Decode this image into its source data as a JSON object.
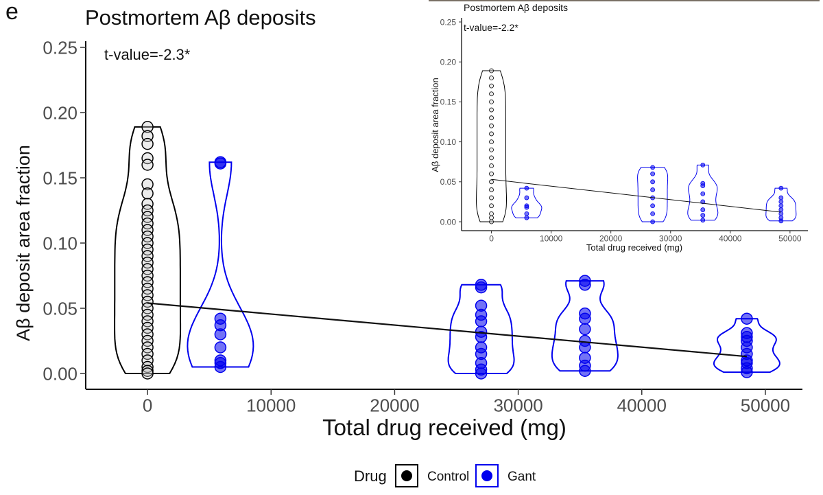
{
  "figure": {
    "panel_letter": "e",
    "legend": {
      "title": "Drug",
      "items": [
        {
          "label": "Control",
          "color": "#000000"
        },
        {
          "label": "Gant",
          "color": "#0000ee"
        }
      ]
    }
  },
  "chart_data": [
    {
      "type": "scatter",
      "subtype": "violin + points + regression line",
      "title": "Postmortem Aβ deposits",
      "annotation": "t-value=-2.3*",
      "xlabel": "Total drug received (mg)",
      "ylabel": "Aβ deposit area fraction",
      "xlim": [
        -5000,
        53000
      ],
      "ylim": [
        0,
        0.25
      ],
      "xticks": [
        0,
        10000,
        20000,
        30000,
        40000,
        50000
      ],
      "xtick_labels": [
        "0",
        "10000",
        "20000",
        "30000",
        "40000",
        "50000"
      ],
      "yticks": [
        0,
        0.05,
        0.1,
        0.15,
        0.2,
        0.25
      ],
      "ytick_labels": [
        "0.00",
        "0.05",
        "0.10",
        "0.15",
        "0.20",
        "0.25"
      ],
      "grid": false,
      "regression_line": {
        "x": [
          0,
          48500
        ],
        "y": [
          0.054,
          0.013
        ]
      },
      "groups": [
        {
          "series": "Control",
          "x": 0,
          "color": "#000000",
          "values": [
            0.189,
            0.182,
            0.176,
            0.165,
            0.16,
            0.145,
            0.138,
            0.13,
            0.125,
            0.12,
            0.115,
            0.11,
            0.105,
            0.1,
            0.095,
            0.09,
            0.085,
            0.08,
            0.075,
            0.07,
            0.065,
            0.06,
            0.055,
            0.05,
            0.045,
            0.04,
            0.035,
            0.03,
            0.025,
            0.02,
            0.015,
            0.01,
            0.005,
            0.002,
            0.0
          ]
        },
        {
          "series": "Gant",
          "x": 5900,
          "color": "#0000ee",
          "values": [
            0.162,
            0.161,
            0.042,
            0.037,
            0.03,
            0.02,
            0.01,
            0.008,
            0.005
          ]
        },
        {
          "series": "Gant",
          "x": 27000,
          "color": "#0000ee",
          "values": [
            0.068,
            0.066,
            0.052,
            0.045,
            0.04,
            0.032,
            0.028,
            0.02,
            0.015,
            0.008,
            0.003,
            0.0
          ]
        },
        {
          "series": "Gant",
          "x": 35400,
          "color": "#0000ee",
          "values": [
            0.071,
            0.068,
            0.046,
            0.042,
            0.034,
            0.025,
            0.02,
            0.012,
            0.006,
            0.002
          ]
        },
        {
          "series": "Gant",
          "x": 48500,
          "color": "#0000ee",
          "values": [
            0.042,
            0.031,
            0.028,
            0.025,
            0.02,
            0.015,
            0.01,
            0.008,
            0.004,
            0.001
          ]
        }
      ]
    },
    {
      "type": "scatter",
      "subtype": "violin + points + regression line (inset)",
      "title": "Postmortem Aβ deposits",
      "annotation": "t-value=-2.2*",
      "xlabel": "Total drug received (mg)",
      "ylabel": "Aβ deposit area fraction",
      "xlim": [
        -5000,
        53000
      ],
      "ylim": [
        0,
        0.25
      ],
      "xticks": [
        0,
        10000,
        20000,
        30000,
        40000,
        50000
      ],
      "xtick_labels": [
        "0",
        "10000",
        "20000",
        "30000",
        "40000",
        "50000"
      ],
      "yticks": [
        0,
        0.05,
        0.1,
        0.15,
        0.2,
        0.25
      ],
      "ytick_labels": [
        "0.00",
        "0.05",
        "0.10",
        "0.15",
        "0.20",
        "0.25"
      ],
      "grid": false,
      "regression_line": {
        "x": [
          0,
          48500
        ],
        "y": [
          0.053,
          0.012
        ]
      },
      "groups": [
        {
          "series": "Control",
          "x": 0,
          "color": "#000000",
          "values": [
            0.189,
            0.18,
            0.17,
            0.16,
            0.15,
            0.14,
            0.13,
            0.12,
            0.11,
            0.1,
            0.09,
            0.08,
            0.07,
            0.06,
            0.05,
            0.04,
            0.03,
            0.02,
            0.01,
            0.005,
            0.0
          ]
        },
        {
          "series": "Gant",
          "x": 5900,
          "color": "#0000ee",
          "values": [
            0.042,
            0.03,
            0.02,
            0.018,
            0.01,
            0.005
          ]
        },
        {
          "series": "Gant",
          "x": 27000,
          "color": "#0000ee",
          "values": [
            0.068,
            0.06,
            0.05,
            0.04,
            0.03,
            0.02,
            0.01,
            0.0
          ]
        },
        {
          "series": "Gant",
          "x": 35400,
          "color": "#0000ee",
          "values": [
            0.071,
            0.048,
            0.045,
            0.035,
            0.025,
            0.015,
            0.008,
            0.002
          ]
        },
        {
          "series": "Gant",
          "x": 48500,
          "color": "#0000ee",
          "values": [
            0.042,
            0.03,
            0.025,
            0.02,
            0.015,
            0.01,
            0.005,
            0.001
          ]
        }
      ]
    }
  ]
}
